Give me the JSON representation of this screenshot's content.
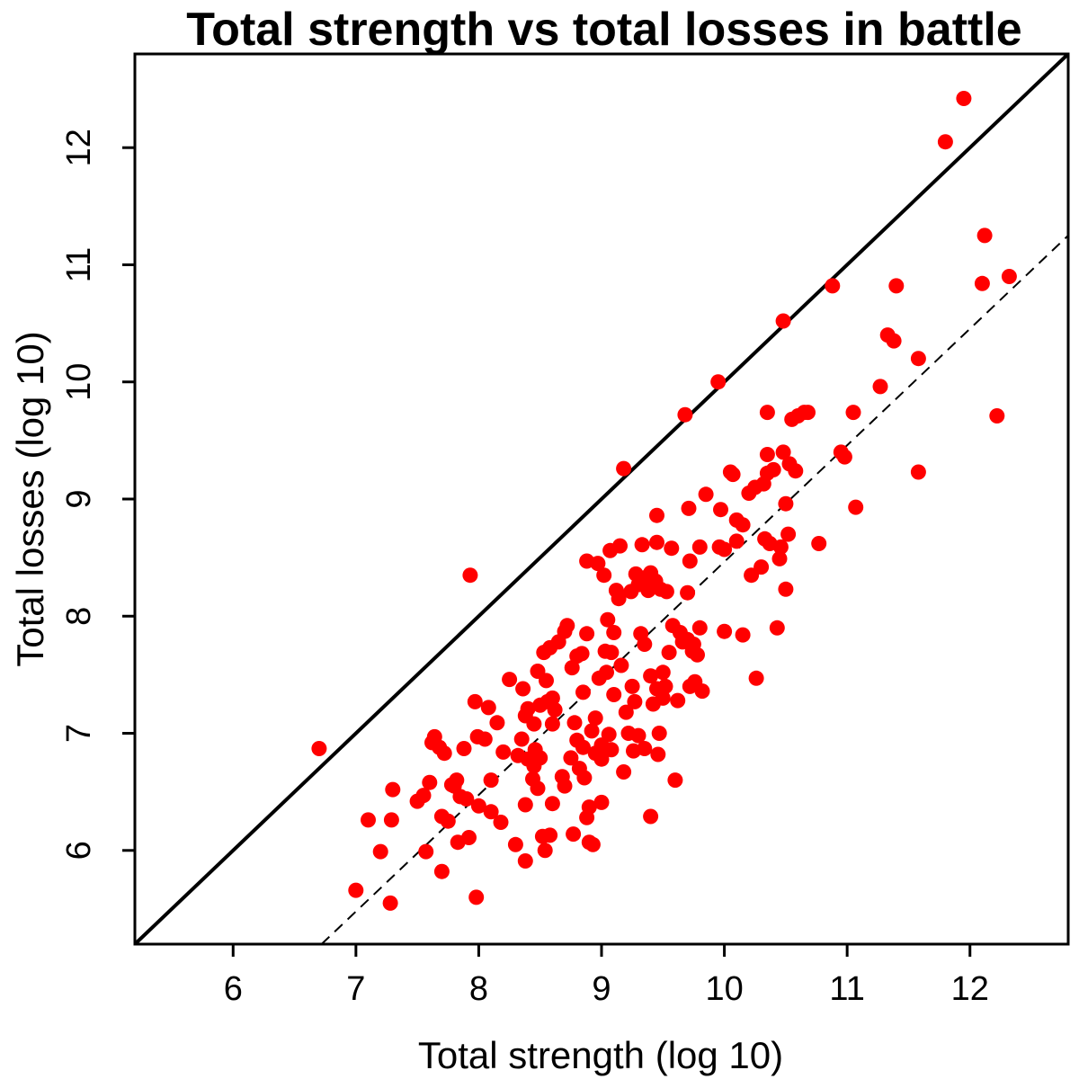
{
  "chart_data": {
    "type": "scatter",
    "title": "Total strength vs total losses in battle",
    "xlabel": "Total strength (log 10)",
    "ylabel": "Total losses (log 10)",
    "xlim": [
      5.2,
      12.8
    ],
    "ylim": [
      5.2,
      12.8
    ],
    "xticks": [
      6,
      7,
      8,
      9,
      10,
      11,
      12
    ],
    "yticks": [
      6,
      7,
      8,
      9,
      10,
      11,
      12
    ],
    "point_color": "#ff0000",
    "line_color": "#000000",
    "grid": false,
    "legend": "none",
    "reference_lines": [
      {
        "style": "solid",
        "x": [
          5.2,
          12.8
        ],
        "y": [
          5.2,
          12.8
        ]
      },
      {
        "style": "dashed",
        "x": [
          6.72,
          12.8
        ],
        "y": [
          5.2,
          11.25
        ]
      }
    ],
    "points": [
      [
        6.7,
        6.87
      ],
      [
        7.0,
        5.66
      ],
      [
        7.1,
        6.26
      ],
      [
        7.2,
        5.99
      ],
      [
        7.28,
        5.55
      ],
      [
        7.29,
        6.26
      ],
      [
        7.3,
        6.52
      ],
      [
        7.5,
        6.42
      ],
      [
        7.55,
        6.47
      ],
      [
        7.57,
        5.99
      ],
      [
        7.6,
        6.58
      ],
      [
        7.62,
        6.92
      ],
      [
        7.64,
        6.97
      ],
      [
        7.68,
        6.88
      ],
      [
        7.7,
        5.82
      ],
      [
        7.7,
        6.29
      ],
      [
        7.72,
        6.83
      ],
      [
        7.75,
        6.25
      ],
      [
        7.78,
        6.56
      ],
      [
        7.8,
        6.55
      ],
      [
        7.82,
        6.6
      ],
      [
        7.83,
        6.07
      ],
      [
        7.85,
        6.46
      ],
      [
        7.88,
        6.87
      ],
      [
        7.9,
        6.44
      ],
      [
        7.92,
        6.11
      ],
      [
        7.93,
        8.35
      ],
      [
        7.97,
        7.27
      ],
      [
        7.98,
        5.6
      ],
      [
        7.99,
        6.97
      ],
      [
        8.0,
        6.38
      ],
      [
        8.05,
        6.95
      ],
      [
        8.08,
        7.22
      ],
      [
        8.1,
        6.6
      ],
      [
        8.1,
        6.33
      ],
      [
        8.15,
        7.09
      ],
      [
        8.18,
        6.24
      ],
      [
        8.2,
        6.84
      ],
      [
        8.25,
        7.46
      ],
      [
        8.3,
        6.05
      ],
      [
        8.32,
        6.81
      ],
      [
        8.35,
        6.95
      ],
      [
        8.36,
        7.38
      ],
      [
        8.38,
        7.15
      ],
      [
        8.38,
        5.91
      ],
      [
        8.38,
        6.39
      ],
      [
        8.4,
        6.78
      ],
      [
        8.4,
        7.21
      ],
      [
        8.44,
        6.61
      ],
      [
        8.45,
        6.72
      ],
      [
        8.45,
        7.08
      ],
      [
        8.46,
        6.86
      ],
      [
        8.48,
        6.53
      ],
      [
        8.48,
        7.53
      ],
      [
        8.5,
        6.79
      ],
      [
        8.5,
        7.24
      ],
      [
        8.52,
        6.12
      ],
      [
        8.53,
        7.69
      ],
      [
        8.54,
        6.0
      ],
      [
        8.55,
        7.45
      ],
      [
        8.56,
        7.27
      ],
      [
        8.58,
        7.73
      ],
      [
        8.58,
        6.13
      ],
      [
        8.6,
        7.3
      ],
      [
        8.6,
        6.4
      ],
      [
        8.6,
        7.08
      ],
      [
        8.62,
        7.2
      ],
      [
        8.65,
        7.78
      ],
      [
        8.68,
        6.63
      ],
      [
        8.7,
        7.87
      ],
      [
        8.7,
        6.55
      ],
      [
        8.72,
        7.92
      ],
      [
        8.75,
        6.79
      ],
      [
        8.76,
        7.56
      ],
      [
        8.77,
        6.14
      ],
      [
        8.78,
        7.09
      ],
      [
        8.8,
        6.94
      ],
      [
        8.8,
        7.66
      ],
      [
        8.82,
        6.7
      ],
      [
        8.84,
        7.68
      ],
      [
        8.85,
        7.35
      ],
      [
        8.85,
        6.88
      ],
      [
        8.86,
        6.62
      ],
      [
        8.88,
        7.85
      ],
      [
        8.88,
        6.28
      ],
      [
        8.88,
        8.47
      ],
      [
        8.9,
        6.07
      ],
      [
        8.9,
        6.37
      ],
      [
        8.92,
        7.02
      ],
      [
        8.93,
        6.05
      ],
      [
        8.95,
        7.13
      ],
      [
        8.95,
        6.83
      ],
      [
        8.97,
        8.45
      ],
      [
        8.98,
        7.47
      ],
      [
        9.0,
        6.78
      ],
      [
        9.0,
        6.41
      ],
      [
        9.0,
        6.9
      ],
      [
        9.02,
        8.35
      ],
      [
        9.03,
        7.7
      ],
      [
        9.04,
        7.52
      ],
      [
        9.05,
        7.97
      ],
      [
        9.06,
        6.99
      ],
      [
        9.07,
        8.56
      ],
      [
        9.08,
        6.86
      ],
      [
        9.08,
        7.69
      ],
      [
        9.1,
        7.86
      ],
      [
        9.1,
        7.33
      ],
      [
        9.12,
        8.22
      ],
      [
        9.14,
        8.15
      ],
      [
        9.15,
        8.6
      ],
      [
        9.16,
        7.58
      ],
      [
        9.18,
        6.67
      ],
      [
        9.18,
        9.26
      ],
      [
        9.2,
        7.18
      ],
      [
        9.22,
        7.0
      ],
      [
        9.24,
        8.21
      ],
      [
        9.25,
        7.4
      ],
      [
        9.26,
        6.85
      ],
      [
        9.27,
        7.27
      ],
      [
        9.28,
        8.36
      ],
      [
        9.3,
        6.98
      ],
      [
        9.3,
        8.27
      ],
      [
        9.32,
        7.85
      ],
      [
        9.33,
        8.61
      ],
      [
        9.35,
        6.87
      ],
      [
        9.35,
        7.76
      ],
      [
        9.36,
        8.33
      ],
      [
        9.38,
        8.22
      ],
      [
        9.4,
        8.37
      ],
      [
        9.4,
        7.49
      ],
      [
        9.4,
        6.29
      ],
      [
        9.42,
        7.25
      ],
      [
        9.44,
        8.3
      ],
      [
        9.45,
        8.63
      ],
      [
        9.45,
        8.86
      ],
      [
        9.45,
        7.38
      ],
      [
        9.46,
        6.82
      ],
      [
        9.47,
        7.0
      ],
      [
        9.48,
        8.23
      ],
      [
        9.5,
        7.3
      ],
      [
        9.5,
        7.52
      ],
      [
        9.52,
        7.4
      ],
      [
        9.53,
        8.21
      ],
      [
        9.55,
        7.69
      ],
      [
        9.57,
        8.58
      ],
      [
        9.58,
        7.92
      ],
      [
        9.6,
        6.6
      ],
      [
        9.62,
        7.28
      ],
      [
        9.64,
        7.86
      ],
      [
        9.66,
        7.78
      ],
      [
        9.68,
        9.72
      ],
      [
        9.7,
        8.2
      ],
      [
        9.7,
        7.8
      ],
      [
        9.71,
        8.92
      ],
      [
        9.72,
        7.4
      ],
      [
        9.72,
        8.47
      ],
      [
        9.74,
        7.7
      ],
      [
        9.75,
        7.76
      ],
      [
        9.76,
        7.44
      ],
      [
        9.78,
        7.67
      ],
      [
        9.8,
        7.9
      ],
      [
        9.8,
        8.59
      ],
      [
        9.82,
        7.36
      ],
      [
        9.85,
        9.04
      ],
      [
        9.95,
        10.0
      ],
      [
        9.96,
        8.59
      ],
      [
        9.97,
        8.91
      ],
      [
        10.0,
        8.57
      ],
      [
        10.0,
        7.87
      ],
      [
        10.05,
        9.23
      ],
      [
        10.07,
        9.21
      ],
      [
        10.1,
        8.82
      ],
      [
        10.1,
        8.64
      ],
      [
        10.15,
        8.78
      ],
      [
        10.15,
        7.84
      ],
      [
        10.2,
        9.05
      ],
      [
        10.22,
        8.35
      ],
      [
        10.25,
        9.1
      ],
      [
        10.26,
        7.47
      ],
      [
        10.3,
        8.42
      ],
      [
        10.32,
        9.13
      ],
      [
        10.33,
        8.66
      ],
      [
        10.35,
        9.74
      ],
      [
        10.35,
        9.38
      ],
      [
        10.35,
        9.22
      ],
      [
        10.37,
        8.62
      ],
      [
        10.4,
        9.25
      ],
      [
        10.43,
        7.9
      ],
      [
        10.45,
        8.49
      ],
      [
        10.46,
        8.59
      ],
      [
        10.48,
        10.52
      ],
      [
        10.48,
        9.4
      ],
      [
        10.5,
        8.96
      ],
      [
        10.5,
        8.23
      ],
      [
        10.52,
        8.7
      ],
      [
        10.53,
        9.3
      ],
      [
        10.55,
        9.68
      ],
      [
        10.58,
        9.24
      ],
      [
        10.6,
        9.71
      ],
      [
        10.65,
        9.74
      ],
      [
        10.68,
        9.74
      ],
      [
        10.77,
        8.62
      ],
      [
        10.88,
        10.82
      ],
      [
        10.95,
        9.4
      ],
      [
        10.98,
        9.36
      ],
      [
        11.05,
        9.74
      ],
      [
        11.07,
        8.93
      ],
      [
        11.27,
        9.96
      ],
      [
        11.33,
        10.4
      ],
      [
        11.38,
        10.35
      ],
      [
        11.4,
        10.82
      ],
      [
        11.58,
        10.2
      ],
      [
        11.58,
        9.23
      ],
      [
        11.8,
        12.05
      ],
      [
        11.95,
        12.42
      ],
      [
        12.1,
        10.84
      ],
      [
        12.12,
        11.25
      ],
      [
        12.22,
        9.71
      ],
      [
        12.32,
        10.9
      ]
    ]
  }
}
